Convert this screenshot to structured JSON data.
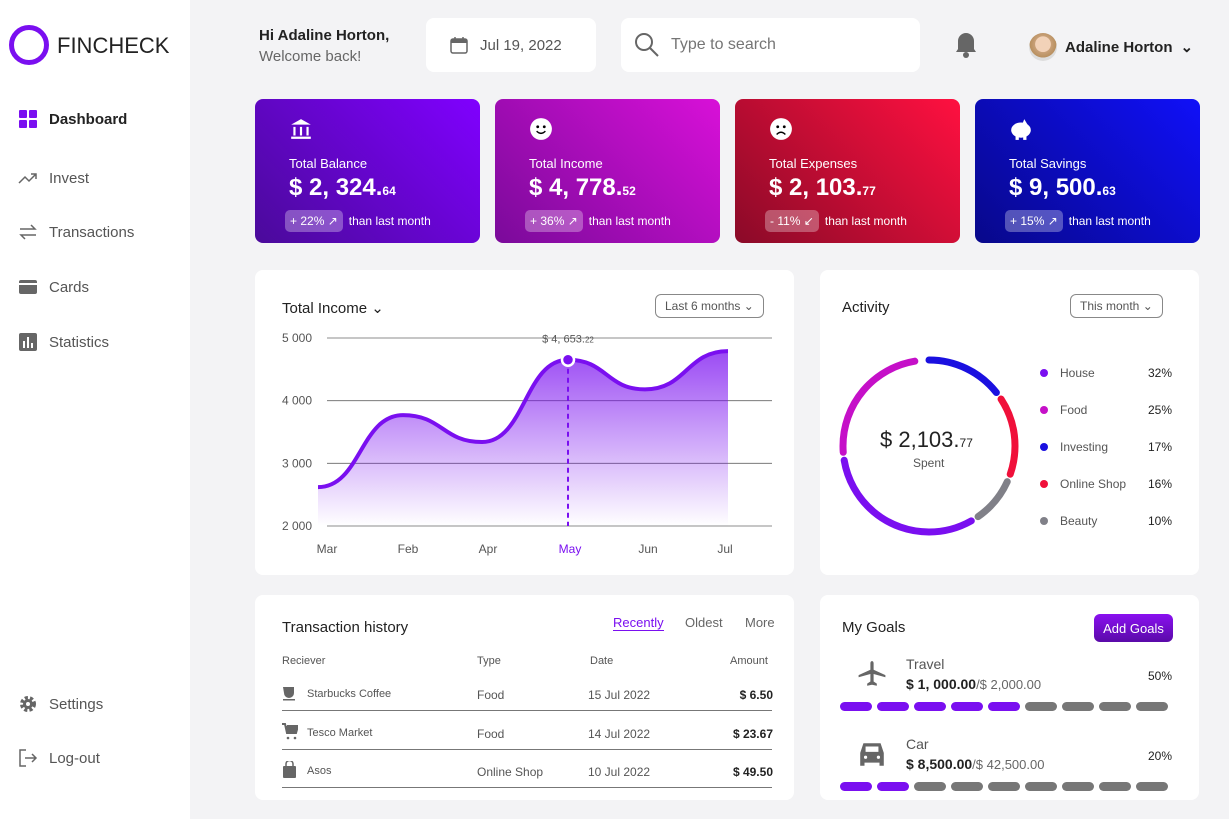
{
  "app": {
    "name": "FINCHECK"
  },
  "sidebar": {
    "items": [
      {
        "label": "Dashboard"
      },
      {
        "label": "Invest"
      },
      {
        "label": "Transactions"
      },
      {
        "label": "Cards"
      },
      {
        "label": "Statistics"
      }
    ],
    "settings": "Settings",
    "logout": "Log-out"
  },
  "header": {
    "greeting": "Hi Adaline Horton,",
    "welcome": "Welcome back!",
    "date": "Jul 19, 2022",
    "search_placeholder": "Type to search",
    "user": "Adaline Horton"
  },
  "stats": [
    {
      "label": "Total Balance",
      "value": "$ 2, 324.",
      "cents": "64",
      "change": "+ 22% ↗",
      "note": "than last month",
      "icon": "bank-icon"
    },
    {
      "label": "Total Income",
      "value": "$ 4, 778.",
      "cents": "52",
      "change": "+ 36% ↗",
      "note": "than last month",
      "icon": "smile-icon"
    },
    {
      "label": "Total Expenses",
      "value": "$ 2, 103.",
      "cents": "77",
      "change": "- 11% ↙",
      "note": "than last month",
      "icon": "sad-icon"
    },
    {
      "label": "Total Savings",
      "value": "$ 9, 500.",
      "cents": "63",
      "change": "+ 15% ↗",
      "note": "than last month",
      "icon": "piggy-bank-icon"
    }
  ],
  "income": {
    "title": "Total Income",
    "range": "Last 6 months",
    "tooltip": "$ 4, 653.",
    "tooltip_cents": "22"
  },
  "chart_data": {
    "type": "area",
    "title": "Total Income",
    "categories": [
      "Mar",
      "Feb",
      "Apr",
      "May",
      "Jun",
      "Jul"
    ],
    "values": [
      2620,
      3770,
      3340,
      4653,
      4180,
      4790
    ],
    "highlight": "May",
    "ylim": [
      2000,
      5000
    ],
    "yticks": [
      "5 000",
      "4 000",
      "3 000",
      "2 000"
    ],
    "color": "#7a0ff0"
  },
  "activity": {
    "title": "Activity",
    "range": "This month",
    "total": "$ 2,103.",
    "total_cents": "77",
    "spent": "Spent",
    "items": [
      {
        "label": "House",
        "pct": "32%",
        "color": "#7a0ff0"
      },
      {
        "label": "Food",
        "pct": "25%",
        "color": "#c510c8"
      },
      {
        "label": "Investing",
        "pct": "17%",
        "color": "#1a10e0"
      },
      {
        "label": "Online Shop",
        "pct": "16%",
        "color": "#f0103a"
      },
      {
        "label": "Beauty",
        "pct": "10%",
        "color": "#808088"
      }
    ]
  },
  "transactions": {
    "title": "Transaction history",
    "tabs": [
      "Recently",
      "Oldest",
      "More"
    ],
    "headers": [
      "Reciever",
      "Type",
      "Date",
      "Amount"
    ],
    "rows": [
      {
        "name": "Starbucks Coffee",
        "type": "Food",
        "date": "15 Jul 2022",
        "amount": "$ 6.50"
      },
      {
        "name": "Tesco Market",
        "type": "Food",
        "date": "14 Jul 2022",
        "amount": "$ 23.67"
      },
      {
        "name": "Asos",
        "type": "Online Shop",
        "date": "10 Jul 2022",
        "amount": "$ 49.50"
      }
    ]
  },
  "goals": {
    "title": "My Goals",
    "add": "Add Goals",
    "items": [
      {
        "name": "Travel",
        "saved": "$ 1, 000.00",
        "target": "/$ 2,000.00",
        "pct": "50%",
        "progress": 0.5
      },
      {
        "name": "Car",
        "saved": "$ 8,500.00",
        "target": "/$ 42,500.00",
        "pct": "20%",
        "progress": 0.2
      }
    ]
  }
}
